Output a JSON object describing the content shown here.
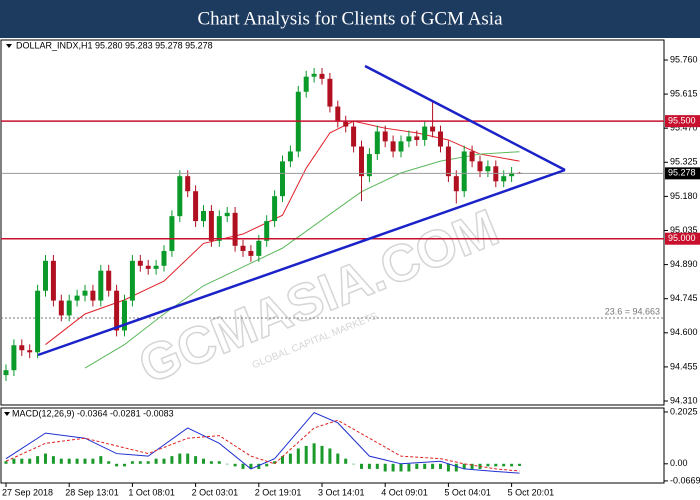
{
  "title": "Chart Analysis for Clients of GCM Asia",
  "chart_data": [
    {
      "type": "candlestick",
      "legend": "DOLLAR_INDX,H1  95.280 95.283 95.278 95.278",
      "up_color": "#0a9a2a",
      "down_color": "#b01020",
      "open": [
        94.42,
        94.441,
        94.547,
        94.526,
        94.517,
        94.779,
        94.906,
        94.737,
        94.674,
        94.737,
        94.758,
        94.779,
        94.737,
        94.864,
        94.779,
        94.61,
        94.737,
        94.906,
        94.885,
        94.872,
        94.885,
        94.948,
        95.096,
        95.266,
        95.202,
        95.075,
        95.118,
        94.991,
        95.096,
        95.11,
        94.97,
        94.948,
        94.927,
        94.991,
        95.075,
        95.181,
        95.329,
        95.371,
        95.625,
        95.689,
        95.701,
        95.68,
        95.562,
        95.498,
        95.477,
        95.392,
        95.266,
        95.36,
        95.456,
        95.414,
        95.371,
        95.414,
        95.435,
        95.42,
        95.477,
        95.456,
        95.392,
        95.266,
        95.202,
        95.371,
        95.329,
        95.287,
        95.308,
        95.244,
        95.266,
        95.28
      ],
      "high": [
        94.466,
        94.572,
        94.572,
        94.551,
        94.804,
        94.931,
        94.931,
        94.762,
        94.762,
        94.783,
        94.804,
        94.804,
        94.889,
        94.889,
        94.804,
        94.762,
        94.931,
        94.931,
        94.91,
        94.91,
        94.973,
        95.121,
        95.291,
        95.291,
        95.227,
        95.143,
        95.143,
        95.121,
        95.135,
        95.135,
        94.995,
        94.973,
        95.016,
        95.1,
        95.206,
        95.354,
        95.396,
        95.65,
        95.714,
        95.726,
        95.726,
        95.705,
        95.587,
        95.523,
        95.502,
        95.417,
        95.385,
        95.481,
        95.481,
        95.439,
        95.439,
        95.46,
        95.46,
        95.502,
        95.58,
        95.481,
        95.417,
        95.291,
        95.396,
        95.396,
        95.354,
        95.333,
        95.333,
        95.291,
        95.305,
        95.283
      ],
      "low": [
        94.395,
        94.416,
        94.501,
        94.492,
        94.492,
        94.754,
        94.712,
        94.649,
        94.649,
        94.712,
        94.733,
        94.712,
        94.712,
        94.754,
        94.585,
        94.585,
        94.712,
        94.86,
        94.847,
        94.847,
        94.86,
        94.923,
        95.071,
        95.177,
        95.05,
        95.05,
        94.966,
        94.966,
        95.071,
        94.945,
        94.923,
        94.902,
        94.902,
        94.966,
        95.05,
        95.156,
        95.304,
        95.346,
        95.6,
        95.664,
        95.655,
        95.537,
        95.473,
        95.452,
        95.367,
        95.16,
        95.241,
        95.335,
        95.389,
        95.346,
        95.346,
        95.389,
        95.395,
        95.395,
        95.431,
        95.367,
        95.241,
        95.15,
        95.177,
        95.304,
        95.262,
        95.262,
        95.219,
        95.219,
        95.241,
        95.278
      ],
      "close": [
        94.441,
        94.547,
        94.526,
        94.517,
        94.779,
        94.906,
        94.737,
        94.674,
        94.737,
        94.758,
        94.779,
        94.737,
        94.864,
        94.779,
        94.61,
        94.737,
        94.906,
        94.885,
        94.872,
        94.885,
        94.948,
        95.096,
        95.266,
        95.202,
        95.075,
        95.118,
        94.991,
        95.096,
        95.11,
        94.97,
        94.948,
        94.927,
        94.991,
        95.075,
        95.181,
        95.329,
        95.371,
        95.625,
        95.689,
        95.701,
        95.68,
        95.562,
        95.498,
        95.477,
        95.392,
        95.266,
        95.36,
        95.456,
        95.414,
        95.371,
        95.414,
        95.435,
        95.42,
        95.477,
        95.456,
        95.392,
        95.266,
        95.202,
        95.371,
        95.329,
        95.287,
        95.308,
        95.244,
        95.266,
        95.28,
        95.278
      ],
      "overlays": [
        {
          "color": "#e0202a",
          "x": [
            5,
            10,
            15,
            20,
            25,
            30,
            35,
            38,
            41,
            44,
            48,
            52,
            56,
            60,
            65
          ],
          "values": [
            94.55,
            94.68,
            94.74,
            94.82,
            94.98,
            95.02,
            95.1,
            95.3,
            95.45,
            95.5,
            95.47,
            95.45,
            95.42,
            95.36,
            95.33
          ]
        },
        {
          "color": "#5cb85c",
          "x": [
            10,
            15,
            20,
            25,
            30,
            35,
            40,
            45,
            50,
            55,
            60,
            65
          ],
          "values": [
            94.45,
            94.55,
            94.68,
            94.8,
            94.88,
            94.96,
            95.08,
            95.2,
            95.28,
            95.33,
            95.36,
            95.37
          ]
        }
      ],
      "ylim": [
        94.293,
        95.845
      ],
      "yticks": [
        {
          "value": 95.76,
          "label": "95.760"
        },
        95.615,
        {
          "value": 95.47,
          "label": "95.470"
        },
        95.325,
        {
          "value": 95.18,
          "label": "95.180"
        },
        95.035,
        {
          "value": 94.89,
          "label": "94.890"
        },
        94.745,
        {
          "value": 94.6,
          "label": "94.600"
        },
        94.455,
        {
          "value": 94.31,
          "label": "94.310"
        }
      ],
      "levels": [
        {
          "value": 95.5,
          "label": "95.500",
          "color": "#c8102e",
          "line_color": "#c8102e"
        },
        {
          "value": 95.278,
          "label": "95.278",
          "color": "#000000",
          "line_color": "#999999"
        },
        {
          "value": 95.0,
          "label": "95.000",
          "color": "#c8102e",
          "line_color": "#c8102e"
        }
      ],
      "fib": {
        "value": 94.663,
        "label": "23.6 = 94.663"
      },
      "watermark": "GCMASIA.COM",
      "watermark_sub": "GLOBAL CAPITAL MARKETS"
    },
    {
      "type": "macd",
      "legend": "MACD(12,26,9) -0.0364 -0.0281 -0.0083",
      "histogram": {
        "color": "#1a9a2a",
        "values": [
          0.01,
          0.02,
          0.02,
          0.02,
          0.03,
          0.04,
          0.03,
          0.02,
          0.02,
          0.02,
          0.02,
          0.02,
          0.03,
          0.01,
          -0.01,
          -0.01,
          0.01,
          0.01,
          0.01,
          0.02,
          0.02,
          0.03,
          0.04,
          0.04,
          0.03,
          0.02,
          0.01,
          0.01,
          0.0,
          -0.01,
          -0.02,
          -0.02,
          -0.02,
          -0.01,
          0.01,
          0.03,
          0.04,
          0.06,
          0.07,
          0.08,
          0.07,
          0.06,
          0.04,
          0.02,
          0.0,
          -0.02,
          -0.02,
          -0.02,
          -0.03,
          -0.03,
          -0.03,
          -0.03,
          -0.02,
          -0.02,
          -0.02,
          -0.02,
          -0.03,
          -0.03,
          -0.02,
          -0.02,
          -0.02,
          -0.01,
          -0.01,
          -0.01,
          -0.01,
          -0.0083
        ]
      },
      "series": [
        {
          "color": "#2030d0",
          "dashed": false,
          "x": [
            0,
            5,
            10,
            14,
            18,
            23,
            27,
            31,
            34,
            39,
            42,
            46,
            50,
            55,
            58,
            62,
            65
          ],
          "values": [
            0.02,
            0.12,
            0.1,
            0.04,
            0.03,
            0.14,
            0.08,
            -0.02,
            0.02,
            0.2,
            0.16,
            0.03,
            0.0,
            0.01,
            -0.02,
            -0.03,
            -0.0364
          ]
        },
        {
          "color": "#e02020",
          "dashed": true,
          "x": [
            0,
            5,
            10,
            14,
            18,
            23,
            27,
            31,
            34,
            39,
            42,
            46,
            50,
            55,
            58,
            62,
            65
          ],
          "values": [
            0.01,
            0.08,
            0.1,
            0.07,
            0.04,
            0.1,
            0.11,
            0.03,
            0.0,
            0.14,
            0.17,
            0.1,
            0.03,
            0.02,
            0.0,
            -0.02,
            -0.0281
          ]
        }
      ],
      "ylim": [
        -0.075,
        0.218
      ],
      "yticks": [
        0.2025,
        {
          "value": 0,
          "label": "0.00"
        },
        -0.0669
      ],
      "xticks": [
        {
          "value": 0,
          "label": "27 Sep 2018"
        },
        {
          "value": 8,
          "label": "28 Sep 13:01"
        },
        {
          "value": 16,
          "label": "1 Oct 08:01"
        },
        {
          "value": 24,
          "label": "2 Oct 03:01"
        },
        {
          "value": 32,
          "label": "2 Oct 19:01"
        },
        {
          "value": 40,
          "label": "3 Oct 14:01"
        },
        {
          "value": 48,
          "label": "4 Oct 09:01"
        },
        {
          "value": 56,
          "label": "5 Oct 04:01"
        },
        {
          "value": 64,
          "label": "5 Oct 20:01"
        }
      ]
    }
  ]
}
